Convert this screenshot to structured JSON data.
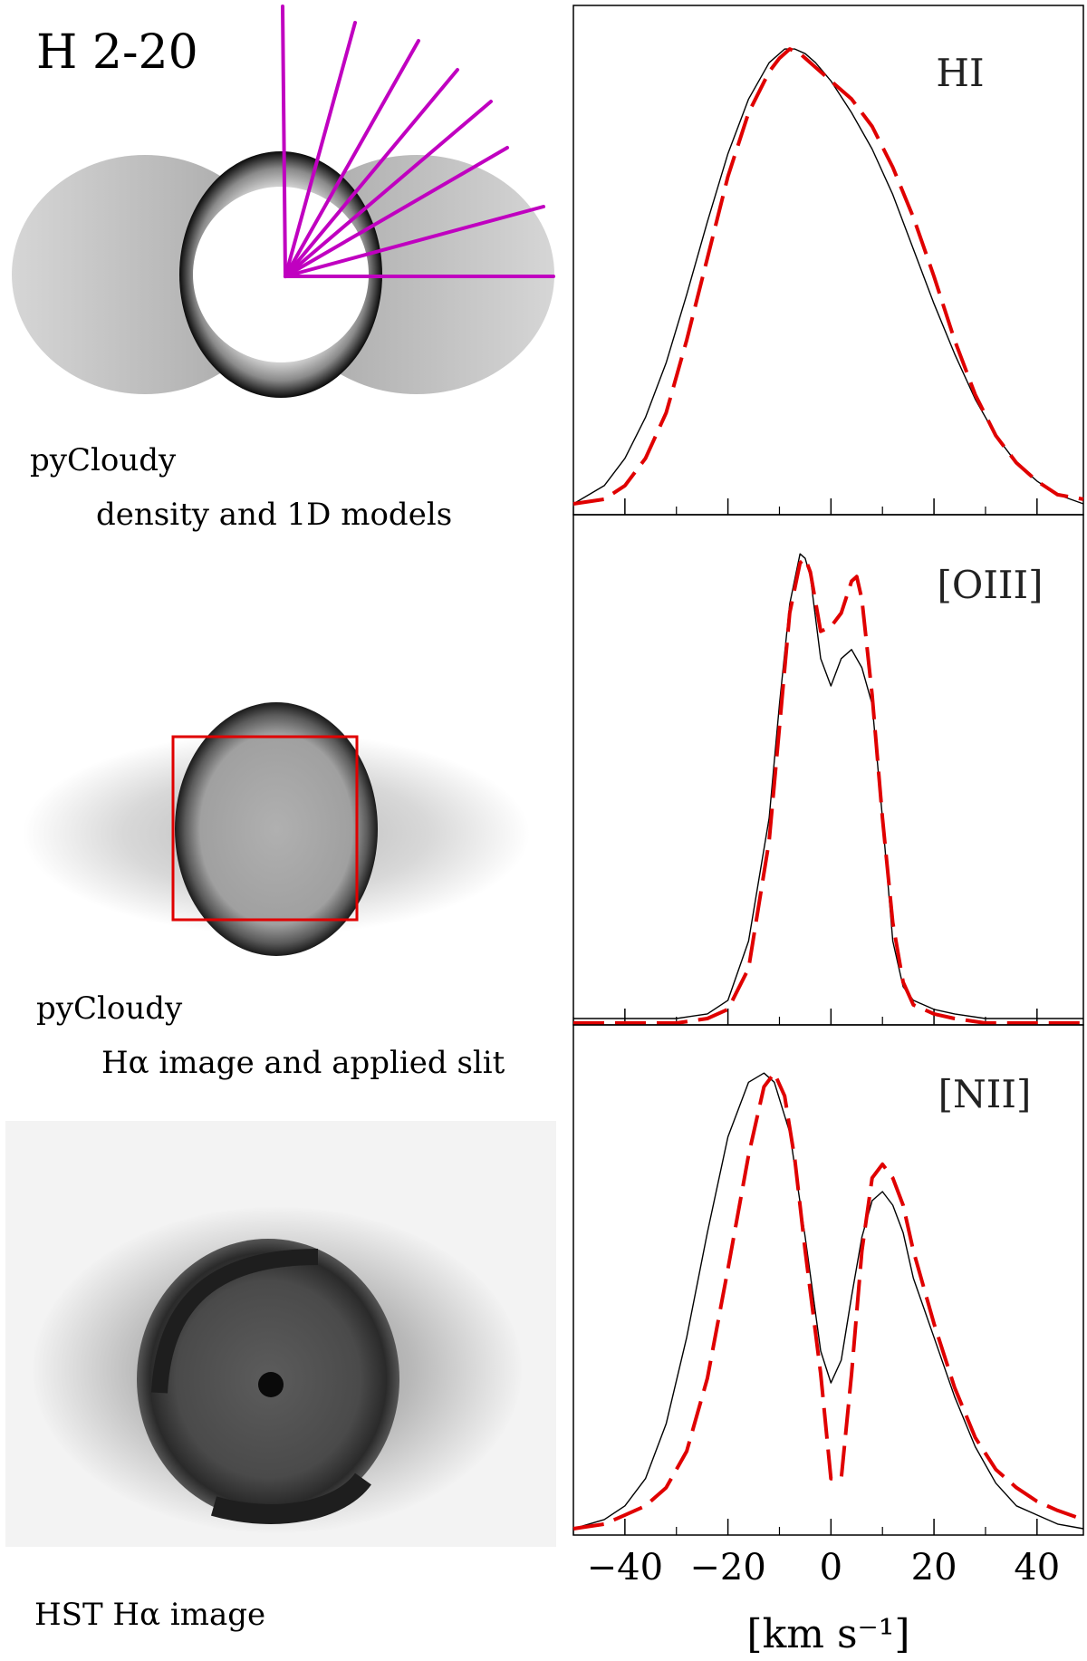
{
  "figure": {
    "object_name": "H 2-20",
    "panel1_caption_line1": "pyCloudy",
    "panel1_caption_line2": "density and 1D models",
    "panel2_caption_line1": "pyCloudy",
    "panel2_caption_line2": "Hα image and applied slit",
    "panel3_caption": "HST Hα image",
    "colors": {
      "rays": "#c000c0",
      "slit": "#e00000",
      "model_line": "#e00000",
      "observed_line": "#000000"
    }
  },
  "chart_data": [
    {
      "type": "line",
      "label": "HI",
      "xlim": [
        -50,
        49
      ],
      "ylim": [
        0,
        1.1
      ],
      "series": [
        {
          "style": "solid-black",
          "x": [
            -50,
            -44,
            -40,
            -36,
            -32,
            -28,
            -24,
            -20,
            -16,
            -12,
            -9,
            -7,
            -5,
            -3,
            0,
            4,
            8,
            12,
            16,
            20,
            24,
            28,
            32,
            36,
            40,
            44,
            49
          ],
          "y": [
            0.02,
            0.06,
            0.12,
            0.21,
            0.33,
            0.48,
            0.64,
            0.79,
            0.91,
            0.99,
            1.02,
            1.02,
            1.01,
            0.99,
            0.95,
            0.88,
            0.8,
            0.7,
            0.58,
            0.46,
            0.35,
            0.25,
            0.17,
            0.11,
            0.07,
            0.04,
            0.02
          ]
        },
        {
          "style": "dashed-red",
          "x": [
            -50,
            -44,
            -40,
            -36,
            -32,
            -28,
            -24,
            -20,
            -16,
            -12,
            -10,
            -8,
            -6,
            -4,
            0,
            4,
            8,
            12,
            16,
            20,
            24,
            28,
            32,
            36,
            40,
            44,
            49
          ],
          "y": [
            0.02,
            0.03,
            0.06,
            0.12,
            0.22,
            0.38,
            0.56,
            0.74,
            0.88,
            0.97,
            1.0,
            1.02,
            1.01,
            0.99,
            0.95,
            0.91,
            0.85,
            0.76,
            0.65,
            0.52,
            0.38,
            0.26,
            0.17,
            0.11,
            0.07,
            0.04,
            0.03
          ]
        }
      ]
    },
    {
      "type": "line",
      "label": "[OIII]",
      "xlim": [
        -50,
        49
      ],
      "ylim": [
        0,
        1.1
      ],
      "series": [
        {
          "style": "solid-black",
          "x": [
            -50,
            -40,
            -30,
            -24,
            -20,
            -16,
            -12,
            -10,
            -8,
            -6,
            -5,
            -4,
            -2,
            0,
            2,
            4,
            6,
            8,
            10,
            12,
            14,
            16,
            20,
            24,
            30,
            40,
            49
          ],
          "y": [
            0.01,
            0.01,
            0.01,
            0.02,
            0.05,
            0.18,
            0.45,
            0.7,
            0.92,
            1.03,
            1.02,
            0.98,
            0.8,
            0.74,
            0.8,
            0.82,
            0.78,
            0.7,
            0.45,
            0.18,
            0.08,
            0.05,
            0.03,
            0.02,
            0.01,
            0.01,
            0.01
          ]
        },
        {
          "style": "dashed-red",
          "x": [
            -50,
            -40,
            -30,
            -24,
            -20,
            -16,
            -12,
            -10,
            -8,
            -6,
            -5,
            -4,
            -2,
            0,
            2,
            4,
            5,
            6,
            8,
            10,
            12,
            14,
            16,
            20,
            24,
            30,
            40,
            49
          ],
          "y": [
            0.0,
            0.0,
            0.0,
            0.01,
            0.03,
            0.12,
            0.4,
            0.65,
            0.9,
            1.01,
            1.02,
            0.99,
            0.86,
            0.87,
            0.9,
            0.97,
            0.98,
            0.93,
            0.72,
            0.45,
            0.22,
            0.09,
            0.04,
            0.02,
            0.01,
            0.0,
            0.0,
            0.0
          ]
        }
      ]
    },
    {
      "type": "line",
      "label": "[NII]",
      "xlim": [
        -50,
        49
      ],
      "ylim": [
        0,
        1.1
      ],
      "series": [
        {
          "style": "solid-black",
          "x": [
            -50,
            -44,
            -40,
            -36,
            -32,
            -28,
            -24,
            -20,
            -16,
            -13,
            -11,
            -8,
            -5,
            -2,
            0,
            2,
            4,
            6,
            8,
            10,
            12,
            14,
            16,
            20,
            24,
            28,
            32,
            36,
            40,
            44,
            49
          ],
          "y": [
            0.01,
            0.03,
            0.06,
            0.12,
            0.24,
            0.43,
            0.66,
            0.87,
            0.99,
            1.01,
            0.99,
            0.88,
            0.65,
            0.4,
            0.33,
            0.38,
            0.52,
            0.65,
            0.73,
            0.75,
            0.72,
            0.66,
            0.56,
            0.43,
            0.3,
            0.19,
            0.11,
            0.06,
            0.04,
            0.02,
            0.01
          ]
        },
        {
          "style": "dashed-red",
          "x": [
            -50,
            -44,
            -40,
            -36,
            -32,
            -28,
            -24,
            -20,
            -16,
            -13,
            -11,
            -9,
            -7,
            -5,
            -2,
            0,
            2,
            4,
            6,
            8,
            10,
            12,
            14,
            16,
            20,
            24,
            28,
            32,
            36,
            40,
            44,
            49
          ],
          "y": [
            0.01,
            0.02,
            0.04,
            0.06,
            0.1,
            0.18,
            0.34,
            0.58,
            0.83,
            0.98,
            1.01,
            0.96,
            0.82,
            0.62,
            0.35,
            0.12,
            0.12,
            0.35,
            0.62,
            0.78,
            0.81,
            0.78,
            0.72,
            0.62,
            0.46,
            0.32,
            0.21,
            0.14,
            0.1,
            0.07,
            0.05,
            0.03
          ]
        }
      ]
    }
  ],
  "x_axis": {
    "ticks": [
      -40,
      -20,
      0,
      20,
      40
    ],
    "tick_labels": [
      "−40",
      "−20",
      "0",
      "20",
      "40"
    ],
    "label": "[km s⁻¹]"
  }
}
